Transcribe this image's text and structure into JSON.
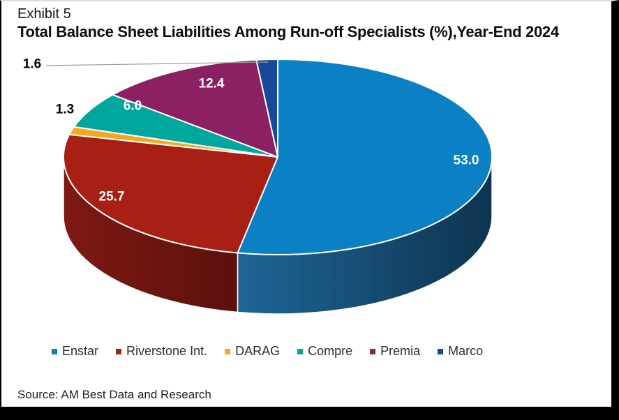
{
  "header": {
    "exhibit_label": "Exhibit 5",
    "title": "Total Balance Sheet Liabilities Among Run-off Specialists (%),Year-End 2024"
  },
  "footer": {
    "source": "Source: AM Best Data and Research"
  },
  "chart_data": {
    "type": "pie",
    "style": "3d-pie",
    "title": "Total Balance Sheet Liabilities Among Run-off Specialists (%), Year-End 2024",
    "values_unit": "%",
    "start_angle_deg": 0,
    "direction": "clockwise",
    "legend_position": "bottom",
    "labels_decimals": 1,
    "separator_color": "#FFFFFF",
    "leader_line_color": "#999999",
    "series": [
      {
        "name": "Enstar",
        "value": 53.0,
        "color": "#0B80C4",
        "side_color_from": "#1E6596",
        "side_color_to": "#0E3450",
        "label_color": "#FFFFFF",
        "label_placement": "inside"
      },
      {
        "name": "Riverstone Int.",
        "value": 25.7,
        "color": "#A81F14",
        "side_color_from": "#7E1913",
        "side_color_to": "#5C100C",
        "label_color": "#FFFFFF",
        "label_placement": "inside"
      },
      {
        "name": "DARAG",
        "value": 1.3,
        "color": "#F6A81C",
        "label_color": "#000000",
        "label_placement": "outside"
      },
      {
        "name": "Compre",
        "value": 6.0,
        "color": "#00A79D",
        "label_color": "#FFFFFF",
        "label_placement": "inside"
      },
      {
        "name": "Premia",
        "value": 12.4,
        "color": "#8B2062",
        "label_color": "#FFFFFF",
        "label_placement": "inside"
      },
      {
        "name": "Marco",
        "value": 1.6,
        "color": "#1A4899",
        "label_color": "#000000",
        "label_placement": "outside-with-leader"
      }
    ]
  }
}
